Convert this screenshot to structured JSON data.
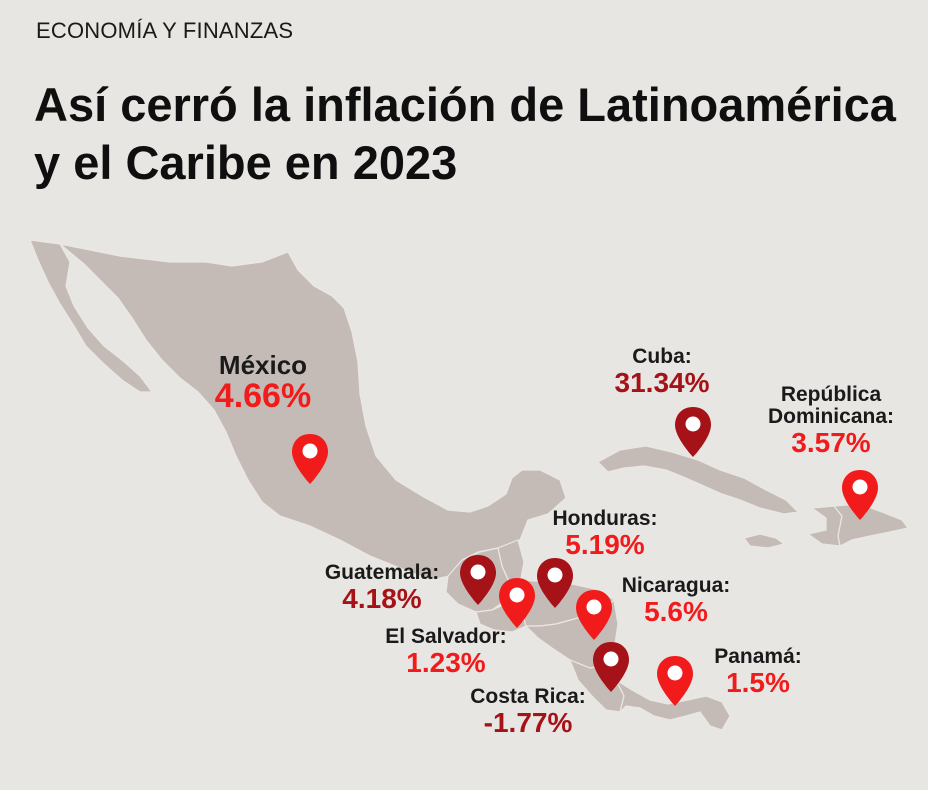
{
  "header": {
    "kicker": "ECONOMÍA Y FINANZAS",
    "title": "Así cerró la inflación de Latinoamérica y el Caribe en 2023"
  },
  "colors": {
    "background": "#e8e6e3",
    "land": "#c4bbb7",
    "border": "#eae7e3",
    "marker_dark": "#a51217",
    "marker_bright": "#f21b1b"
  },
  "countries": {
    "mexico": {
      "name": "México",
      "value": "4.66%",
      "marker": "bright"
    },
    "cuba": {
      "name": "Cuba:",
      "value": "31.34%",
      "marker": "dark"
    },
    "dominicana": {
      "name_line1": "República",
      "name_line2": "Dominicana:",
      "value": "3.57%",
      "marker": "bright"
    },
    "honduras": {
      "name": "Honduras:",
      "value": "5.19%",
      "marker": "dark"
    },
    "guatemala": {
      "name": "Guatemala:",
      "value": "4.18%",
      "marker": "dark"
    },
    "nicaragua": {
      "name": "Nicaragua:",
      "value": "5.6%",
      "marker": "bright"
    },
    "el_salvador": {
      "name": "El Salvador:",
      "value": "1.23%",
      "marker": "bright"
    },
    "panama": {
      "name": "Panamá:",
      "value": "1.5%",
      "marker": "bright"
    },
    "costa_rica": {
      "name": "Costa Rica:",
      "value": "-1.77%",
      "marker": "dark"
    }
  }
}
